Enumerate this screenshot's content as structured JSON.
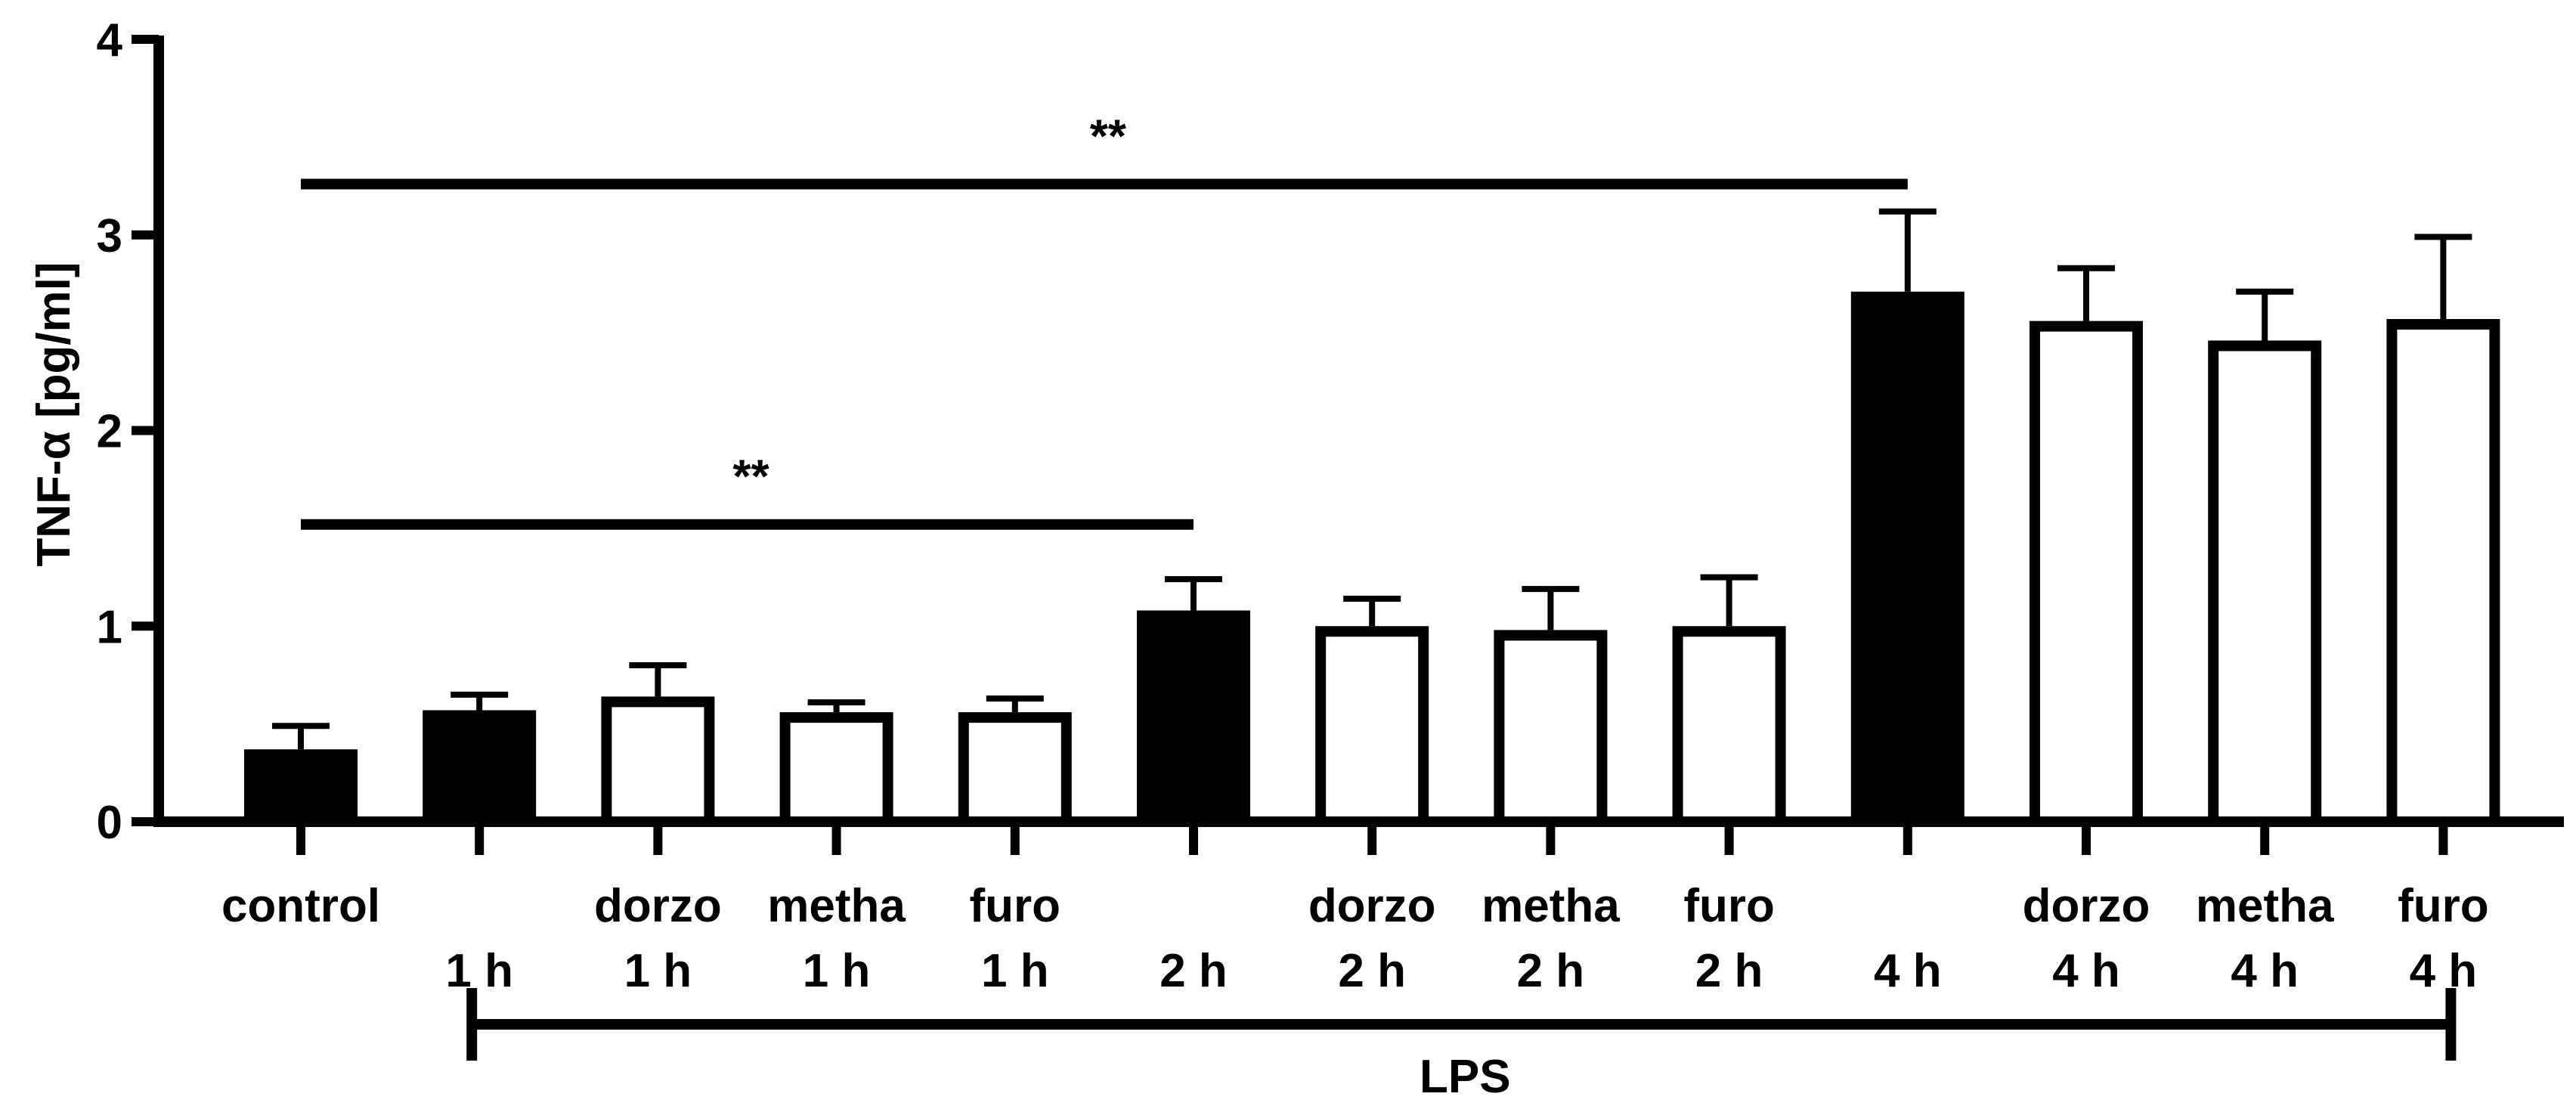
{
  "chart_data": {
    "type": "bar",
    "ylabel": "TNF-α [pg/ml]",
    "ylim": [
      0,
      4
    ],
    "yticks": [
      "0",
      "1",
      "2",
      "3",
      "4"
    ],
    "categories": [
      {
        "line1": "control",
        "line2": ""
      },
      {
        "line1": "",
        "line2": "1 h"
      },
      {
        "line1": "dorzo",
        "line2": "1 h"
      },
      {
        "line1": "metha",
        "line2": "1 h"
      },
      {
        "line1": "furo",
        "line2": "1 h"
      },
      {
        "line1": "",
        "line2": "2 h"
      },
      {
        "line1": "dorzo",
        "line2": "2 h"
      },
      {
        "line1": "metha",
        "line2": "2 h"
      },
      {
        "line1": "furo",
        "line2": "2 h"
      },
      {
        "line1": "",
        "line2": "4 h"
      },
      {
        "line1": "dorzo",
        "line2": "4 h"
      },
      {
        "line1": "metha",
        "line2": "4 h"
      },
      {
        "line1": "furo",
        "line2": "4 h"
      }
    ],
    "values": [
      0.37,
      0.57,
      0.64,
      0.56,
      0.56,
      1.08,
      1.0,
      0.98,
      1.0,
      2.71,
      2.56,
      2.46,
      2.57
    ],
    "errors": [
      0.12,
      0.08,
      0.16,
      0.05,
      0.07,
      0.16,
      0.14,
      0.21,
      0.25,
      0.41,
      0.27,
      0.25,
      0.42
    ],
    "filled": [
      true,
      true,
      false,
      false,
      false,
      true,
      false,
      false,
      false,
      true,
      false,
      false,
      false
    ],
    "significance": [
      {
        "from": 0,
        "to": 5,
        "label": "**",
        "y": 1.52
      },
      {
        "from": 0,
        "to": 9,
        "label": "**",
        "y": 3.26
      }
    ],
    "group_bracket": {
      "label": "LPS",
      "from": 1,
      "to": 12
    },
    "colors": {
      "filled": "#000000",
      "open": "#ffffff",
      "stroke": "#000000"
    }
  }
}
